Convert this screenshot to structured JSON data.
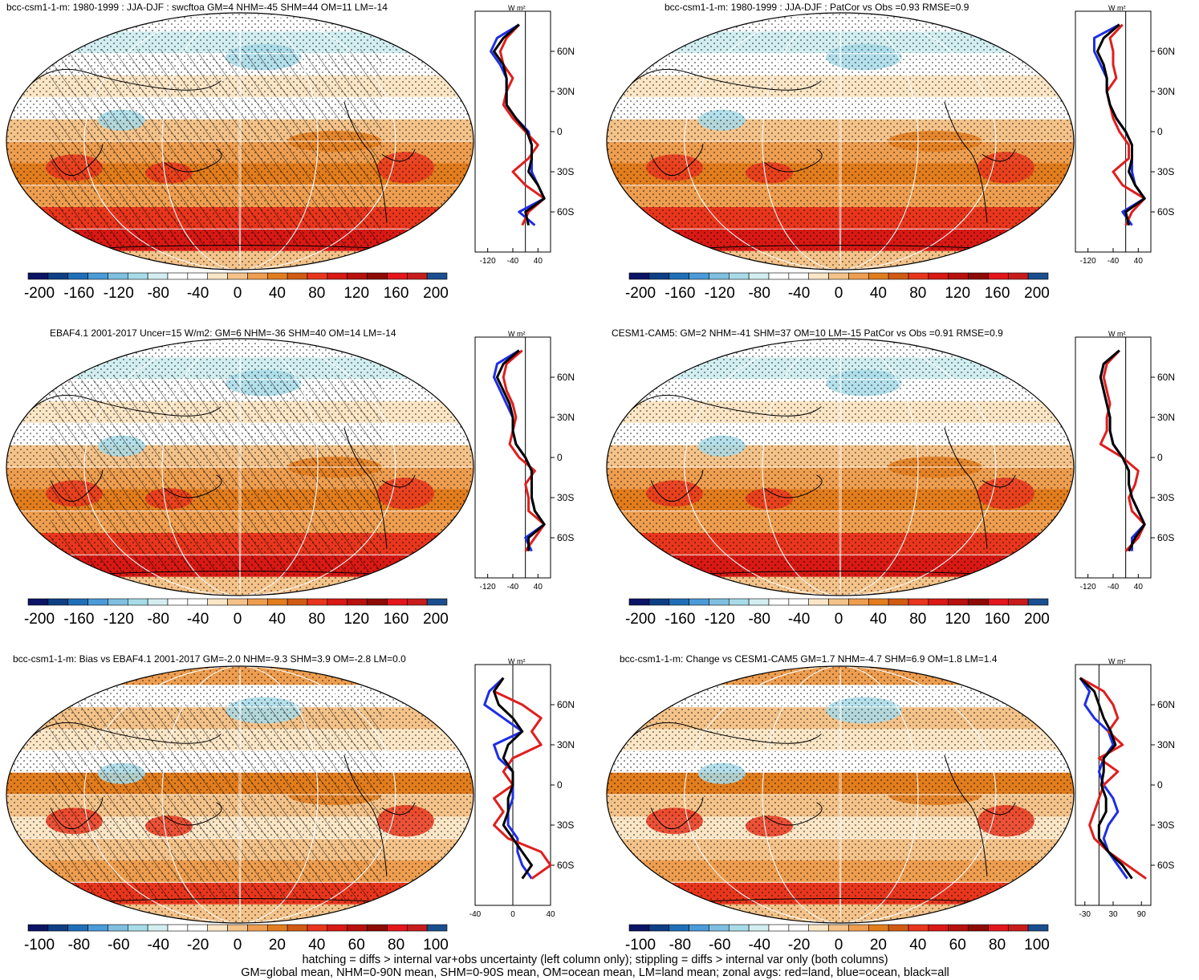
{
  "colors": {
    "land": "#e01e1e",
    "ocean": "#1f2ee6",
    "all": "#000000"
  },
  "palette": [
    "#0b1464",
    "#0d3f85",
    "#1f6fb8",
    "#4a9bd8",
    "#7fbfe0",
    "#a7dbe8",
    "#d2eef0",
    "#ffffff",
    "#ffffff",
    "#fbe6c6",
    "#f4c38a",
    "#ee9e50",
    "#e27d1d",
    "#d25b14",
    "#e8361d",
    "#d81914",
    "#b8100c",
    "#8d0a05",
    "#e4161c",
    "#c81c1c",
    "#1a4f8f"
  ],
  "panels": [
    {
      "title": "bcc-csm1-1-m: 1980-1999 : JJA-DJF : swcftoa GM=4 NHM=-45 SHM=44 OM=11 LM=-14",
      "colorbar_labels": [
        "-200",
        "-160",
        "-120",
        "-80",
        "-40",
        "0",
        "40",
        "80",
        "120",
        "160",
        "200"
      ],
      "zonal_unit": "W m²",
      "zonal_xticks": [
        "-120",
        "-40",
        "40"
      ],
      "zonal_yticks": [
        "60N",
        "30N",
        "0",
        "30S",
        "60S"
      ]
    },
    {
      "title": "bcc-csm1-1-m: 1980-1999 : JJA-DJF : PatCor vs Obs =0.93 RMSE=0.9",
      "colorbar_labels": [
        "-200",
        "-160",
        "-120",
        "-80",
        "-40",
        "0",
        "40",
        "80",
        "120",
        "160",
        "200"
      ],
      "zonal_unit": "W m²",
      "zonal_xticks": [
        "-120",
        "-40",
        "40"
      ],
      "zonal_yticks": [
        "60N",
        "30N",
        "0",
        "30S",
        "60S"
      ]
    },
    {
      "title": "EBAF4.1 2001-2017 Uncer=15 W/m2: GM=6 NHM=-36 SHM=40 OM=14 LM=-14",
      "colorbar_labels": [
        "-200",
        "-160",
        "-120",
        "-80",
        "-40",
        "0",
        "40",
        "80",
        "120",
        "160",
        "200"
      ],
      "zonal_unit": "W m²",
      "zonal_xticks": [
        "-120",
        "-40",
        "40"
      ],
      "zonal_yticks": [
        "60N",
        "30N",
        "0",
        "30S",
        "60S"
      ]
    },
    {
      "title": "CESM1-CAM5: GM=2 NHM=-41 SHM=37 OM=10 LM=-15 PatCor vs Obs =0.91 RMSE=0.9",
      "colorbar_labels": [
        "-200",
        "-160",
        "-120",
        "-80",
        "-40",
        "0",
        "40",
        "80",
        "120",
        "160",
        "200"
      ],
      "zonal_unit": "W m²",
      "zonal_xticks": [
        "-120",
        "-40",
        "40"
      ],
      "zonal_yticks": [
        "60N",
        "30N",
        "0",
        "30S",
        "60S"
      ]
    },
    {
      "title": "bcc-csm1-1-m: Bias vs EBAF4.1 2001-2017 GM=-2.0 NHM=-9.3 SHM=3.9 OM=-2.8 LM=0.0",
      "colorbar_labels": [
        "-100",
        "-80",
        "-60",
        "-40",
        "-20",
        "0",
        "20",
        "40",
        "60",
        "80",
        "100"
      ],
      "zonal_unit": "W m²",
      "zonal_xticks": [
        "-40",
        "0",
        "40"
      ],
      "zonal_yticks": [
        "60N",
        "30N",
        "0",
        "30S",
        "60S"
      ]
    },
    {
      "title": "bcc-csm1-1-m: Change vs CESM1-CAM5 GM=1.7 NHM=-4.7 SHM=6.9 OM=1.8 LM=1.4",
      "colorbar_labels": [
        "-100",
        "-80",
        "-60",
        "-40",
        "-20",
        "0",
        "20",
        "40",
        "60",
        "80",
        "100"
      ],
      "zonal_unit": "W m²",
      "zonal_xticks": [
        "-30",
        "30",
        "90"
      ],
      "zonal_yticks": [
        "60N",
        "30N",
        "0",
        "30S",
        "60S"
      ]
    }
  ],
  "footer": {
    "line1": "hatching = diffs > internal var+obs uncertainty (left column only); stippling = diffs > internal var only (both columns)",
    "line2": "GM=global mean, NHM=0-90N mean, SHM=0-90S mean, OM=ocean mean, LM=land mean; zonal avgs: red=land, blue=ocean, black=all"
  },
  "chart_data": [
    {
      "type": "line",
      "title": "bcc-csm1-1-m: 1980-1999 : JJA-DJF : swcftoa GM=4 NHM=-45 SHM=44 OM=11 LM=-14",
      "xlabel": "W m²",
      "xlim": [
        -160,
        80
      ],
      "ylim": [
        -90,
        90
      ],
      "y": [
        80,
        70,
        60,
        50,
        40,
        30,
        20,
        10,
        0,
        -10,
        -20,
        -30,
        -40,
        -50,
        -60,
        -70
      ],
      "series": [
        {
          "name": "land",
          "values": [
            -20,
            -60,
            -80,
            -70,
            -40,
            -60,
            -70,
            -40,
            0,
            40,
            10,
            -40,
            0,
            60,
            10,
            -10
          ]
        },
        {
          "name": "ocean",
          "values": [
            -20,
            -90,
            -110,
            -80,
            -60,
            -60,
            -60,
            -30,
            10,
            20,
            20,
            20,
            40,
            60,
            -20,
            30
          ]
        },
        {
          "name": "all",
          "values": [
            -20,
            -70,
            -100,
            -70,
            -60,
            -60,
            -60,
            -30,
            5,
            20,
            20,
            10,
            40,
            60,
            0,
            10
          ]
        }
      ]
    },
    {
      "type": "line",
      "title": "bcc-csm1-1-m: 1980-1999 : JJA-DJF : PatCor vs Obs =0.93 RMSE=0.9",
      "xlabel": "W m²",
      "xlim": [
        -160,
        80
      ],
      "ylim": [
        -90,
        90
      ],
      "y": [
        80,
        70,
        60,
        50,
        40,
        30,
        20,
        10,
        0,
        -10,
        -20,
        -30,
        -40,
        -50,
        -60,
        -70
      ],
      "series": [
        {
          "name": "land",
          "values": [
            -10,
            -50,
            -40,
            -40,
            -30,
            -60,
            -50,
            -40,
            -20,
            10,
            10,
            -40,
            -10,
            60,
            20,
            0
          ]
        },
        {
          "name": "ocean",
          "values": [
            -20,
            -100,
            -100,
            -80,
            -60,
            -60,
            -50,
            -30,
            0,
            20,
            20,
            20,
            30,
            60,
            -10,
            20
          ]
        },
        {
          "name": "all",
          "values": [
            -20,
            -70,
            -90,
            -70,
            -60,
            -60,
            -50,
            -30,
            0,
            20,
            20,
            10,
            30,
            60,
            0,
            10
          ]
        }
      ]
    },
    {
      "type": "line",
      "title": "EBAF4.1 2001-2017 Uncer=15 W/m2: GM=6 NHM=-36 SHM=40 OM=14 LM=-14",
      "xlabel": "W m²",
      "xlim": [
        -160,
        80
      ],
      "ylim": [
        -90,
        90
      ],
      "y": [
        80,
        70,
        60,
        50,
        40,
        30,
        20,
        10,
        0,
        -10,
        -20,
        -30,
        -40,
        -50,
        -60,
        -70
      ],
      "series": [
        {
          "name": "land",
          "values": [
            -10,
            -60,
            -70,
            -60,
            -40,
            -30,
            -40,
            -50,
            -20,
            30,
            0,
            10,
            10,
            60,
            30,
            0
          ]
        },
        {
          "name": "ocean",
          "values": [
            -20,
            -90,
            -100,
            -80,
            -60,
            -40,
            -40,
            -30,
            0,
            20,
            20,
            20,
            30,
            60,
            0,
            20
          ]
        },
        {
          "name": "all",
          "values": [
            -20,
            -70,
            -90,
            -70,
            -50,
            -40,
            -40,
            -30,
            0,
            20,
            20,
            20,
            30,
            60,
            10,
            10
          ]
        }
      ]
    },
    {
      "type": "line",
      "title": "CESM1-CAM5: GM=2 NHM=-41 SHM=37 OM=10 LM=-15 PatCor vs Obs =0.91 RMSE=0.9",
      "xlabel": "W m²",
      "xlim": [
        -160,
        80
      ],
      "ylim": [
        -90,
        90
      ],
      "y": [
        80,
        70,
        60,
        50,
        40,
        30,
        20,
        10,
        0,
        -10,
        -20,
        -30,
        -40,
        -50,
        -60,
        -70
      ],
      "series": [
        {
          "name": "land",
          "values": [
            -20,
            -60,
            -70,
            -60,
            -50,
            -60,
            -60,
            -80,
            -10,
            40,
            30,
            10,
            20,
            60,
            40,
            0
          ]
        },
        {
          "name": "ocean",
          "values": [
            -20,
            -70,
            -80,
            -70,
            -60,
            -50,
            -50,
            -40,
            -10,
            10,
            10,
            20,
            40,
            60,
            20,
            20
          ]
        },
        {
          "name": "all",
          "values": [
            -20,
            -70,
            -80,
            -70,
            -60,
            -50,
            -50,
            -40,
            -10,
            10,
            10,
            20,
            40,
            60,
            30,
            10
          ]
        }
      ]
    },
    {
      "type": "line",
      "title": "bcc-csm1-1-m: Bias vs EBAF4.1 2001-2017 GM=-2.0 NHM=-9.3 SHM=3.9 OM=-2.8 LM=0.0",
      "xlabel": "W m²",
      "xlim": [
        -40,
        40
      ],
      "ylim": [
        -90,
        90
      ],
      "y": [
        80,
        70,
        60,
        50,
        40,
        30,
        20,
        10,
        0,
        -10,
        -20,
        -30,
        -40,
        -50,
        -60,
        -70
      ],
      "series": [
        {
          "name": "land",
          "values": [
            -10,
            -20,
            10,
            30,
            20,
            30,
            0,
            -10,
            0,
            -20,
            -10,
            -20,
            -5,
            30,
            40,
            20
          ]
        },
        {
          "name": "ocean",
          "values": [
            -10,
            -25,
            -30,
            -10,
            10,
            -20,
            -15,
            0,
            0,
            0,
            -5,
            -5,
            5,
            5,
            10,
            20
          ]
        },
        {
          "name": "all",
          "values": [
            -10,
            -20,
            -15,
            0,
            10,
            -5,
            -10,
            0,
            0,
            -5,
            -5,
            -10,
            0,
            10,
            20,
            10
          ]
        }
      ]
    },
    {
      "type": "line",
      "title": "bcc-csm1-1-m: Change vs CESM1-CAM5 GM=1.7 NHM=-4.7 SHM=6.9 OM=1.8 LM=1.4",
      "xlabel": "W m²",
      "xlim": [
        -50,
        110
      ],
      "ylim": [
        -90,
        90
      ],
      "y": [
        80,
        70,
        60,
        50,
        40,
        30,
        20,
        10,
        0,
        -10,
        -20,
        -30,
        -40,
        -50,
        -60,
        -70
      ],
      "series": [
        {
          "name": "land",
          "values": [
            -40,
            10,
            30,
            40,
            20,
            50,
            0,
            40,
            10,
            0,
            -10,
            -20,
            -10,
            20,
            60,
            100
          ]
        },
        {
          "name": "ocean",
          "values": [
            -40,
            -20,
            -30,
            -10,
            20,
            30,
            10,
            0,
            10,
            30,
            40,
            20,
            10,
            20,
            40,
            60
          ]
        },
        {
          "name": "all",
          "values": [
            -40,
            -10,
            0,
            10,
            25,
            35,
            10,
            10,
            5,
            15,
            15,
            0,
            0,
            20,
            50,
            70
          ]
        }
      ]
    }
  ]
}
